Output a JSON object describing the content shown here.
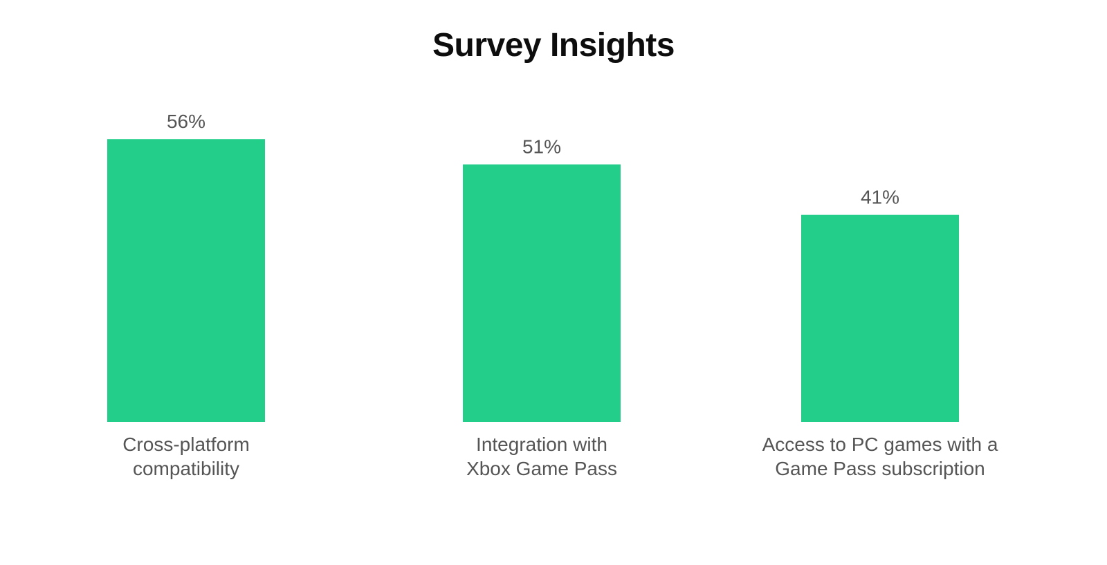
{
  "chart_data": {
    "type": "bar",
    "title": "Survey Insights",
    "xlabel": "",
    "ylabel": "",
    "categories": [
      [
        "Cross-platform",
        "compatibility"
      ],
      [
        "Integration with",
        "Xbox Game Pass"
      ],
      [
        "Access to PC games with a",
        "Game Pass subscription"
      ]
    ],
    "values": [
      56,
      51,
      41
    ],
    "value_labels": [
      "56%",
      "51%",
      "41%"
    ],
    "ylim": [
      0,
      56
    ],
    "grid": false,
    "bar_color": "#22CE8A"
  }
}
